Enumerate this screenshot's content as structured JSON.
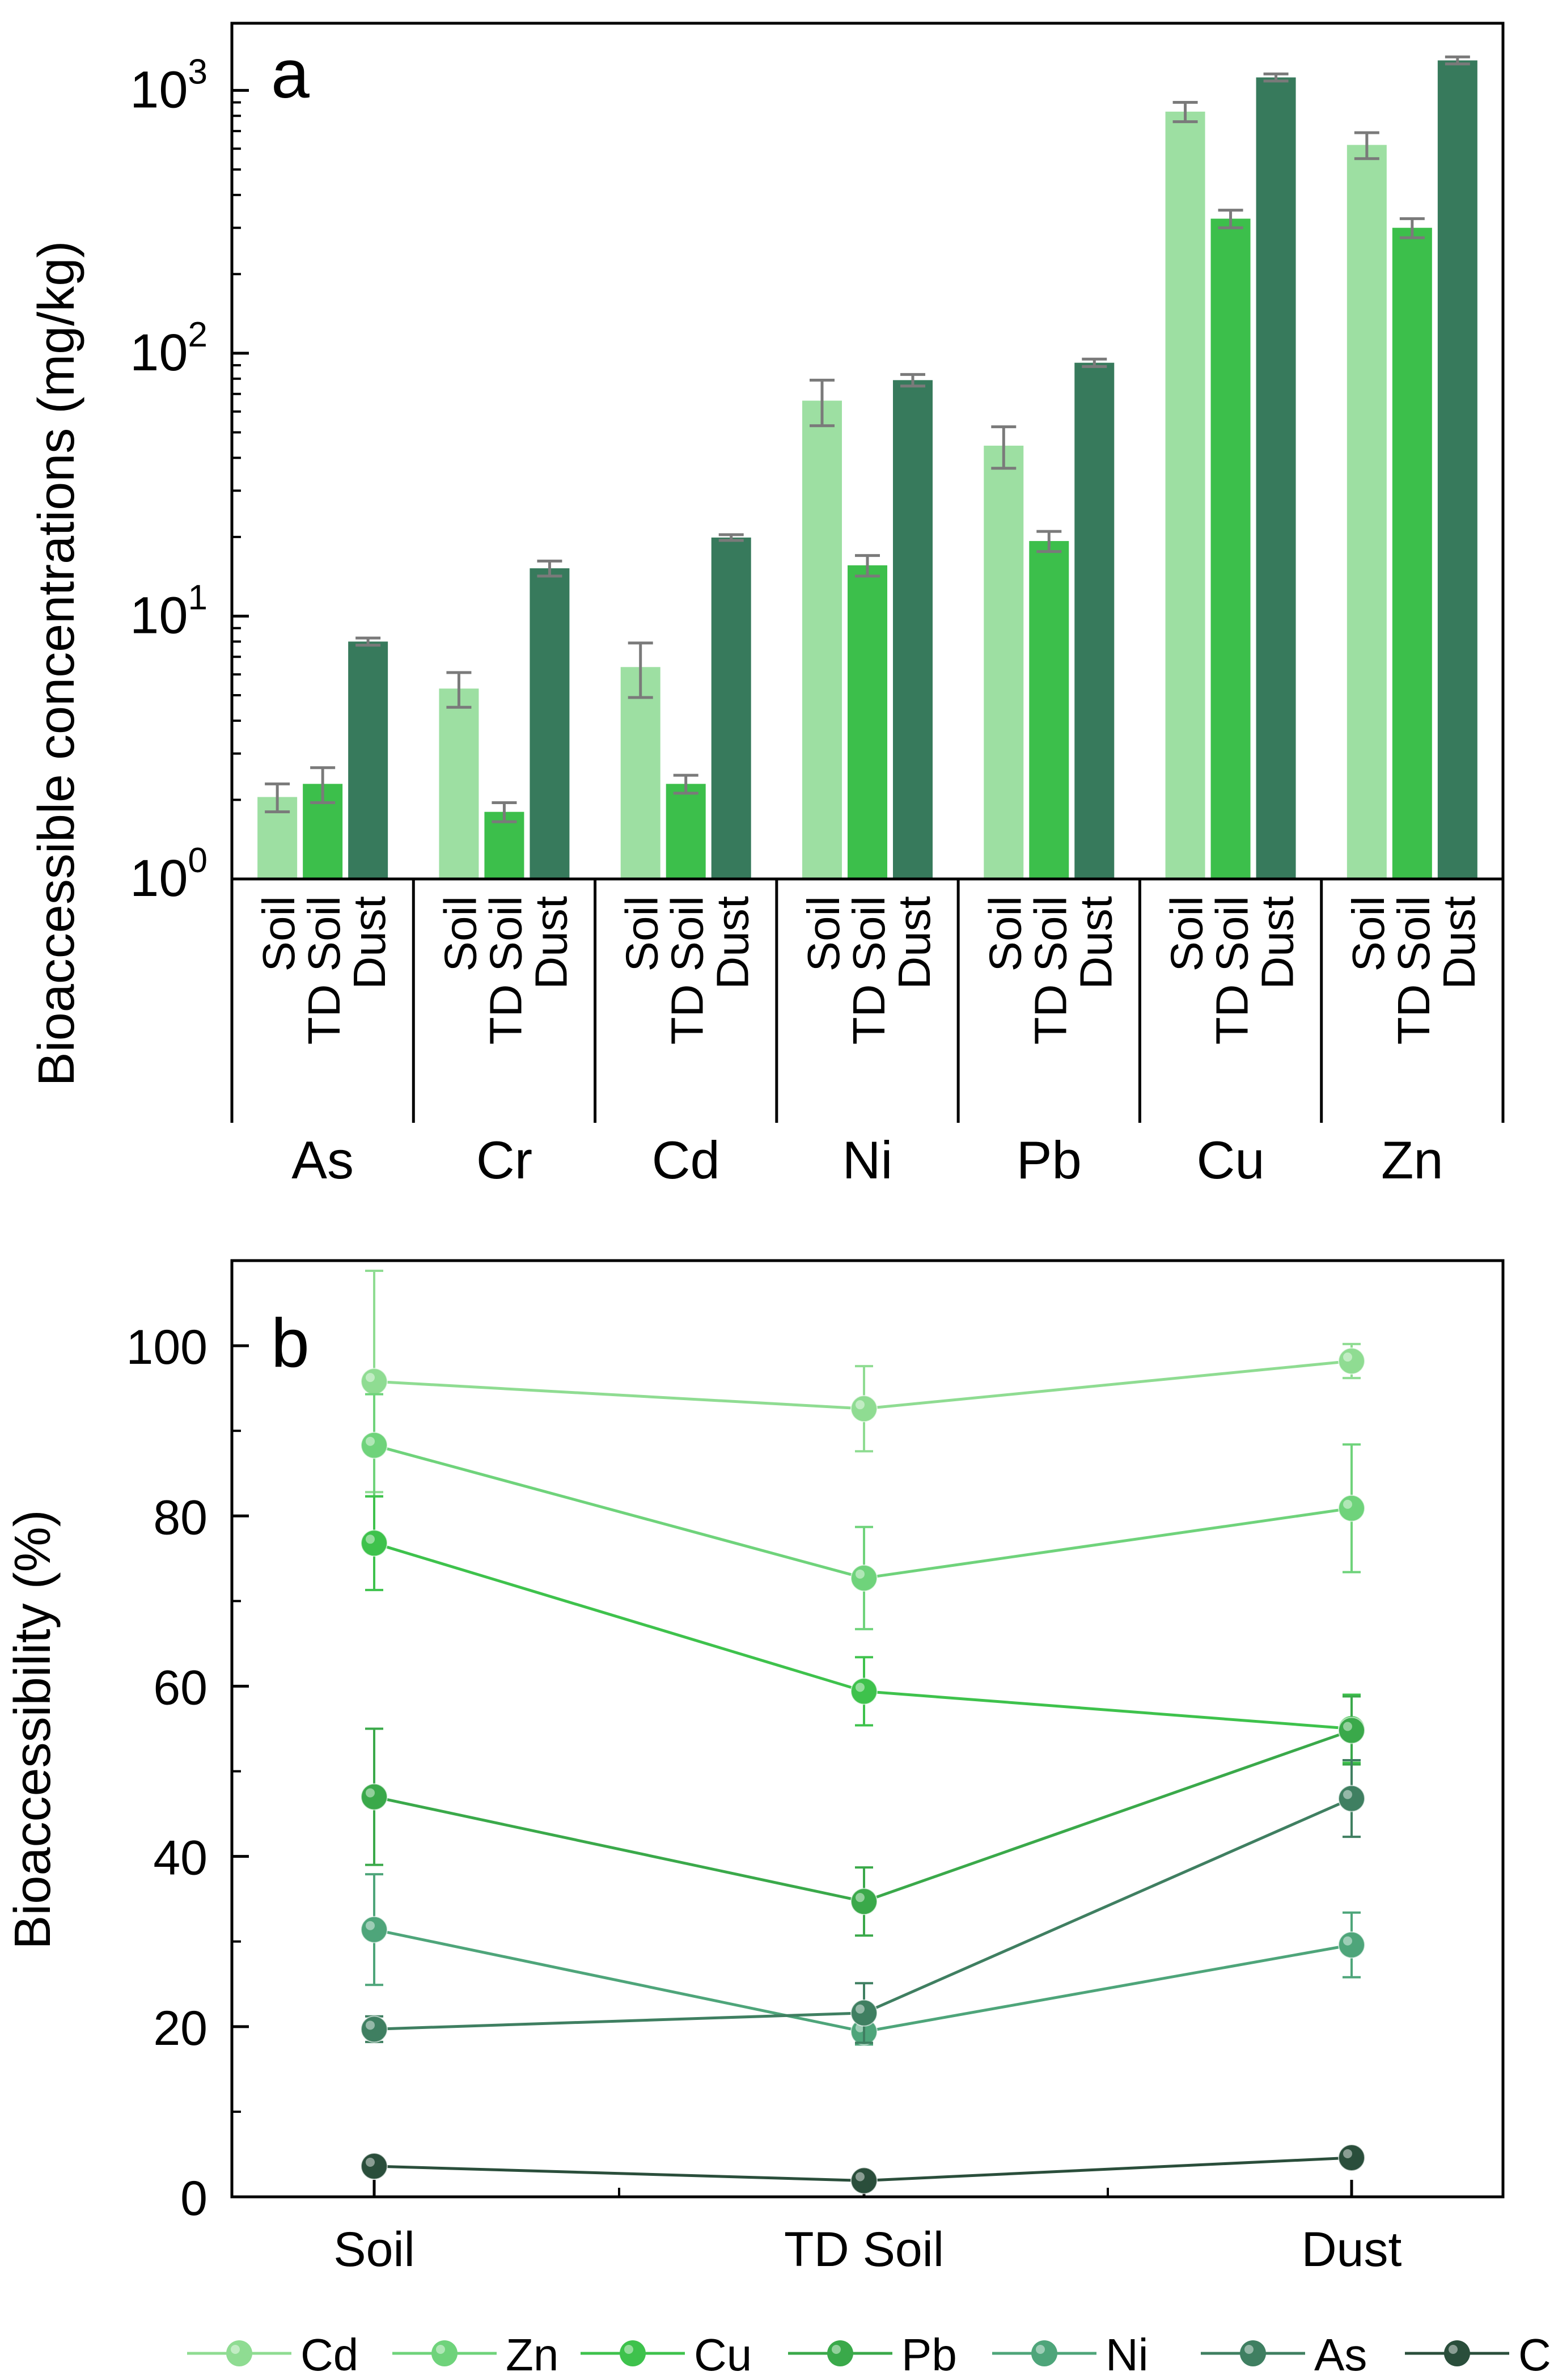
{
  "colors": {
    "soil": "#9ddfa2",
    "td_soil": "#3cbf4b",
    "dust": "#377a5c",
    "error_bar": "#7a7a7a",
    "axis": "#000000",
    "Cd": "#8fdc92",
    "Zn": "#6fd37b",
    "Cu": "#3ec24c",
    "Pb": "#3aa94a",
    "Ni": "#4ea57a",
    "As": "#3f7f61",
    "Cr": "#2a4e3b"
  },
  "chart_data": [
    {
      "type": "bar",
      "panel_label": "a",
      "ylabel": "Bioaccessible concentrations (mg/kg)",
      "yscale": "log",
      "ylim": [
        1,
        1800
      ],
      "yticks": [
        {
          "value": 1,
          "base": "10",
          "exp": "0"
        },
        {
          "value": 10,
          "base": "10",
          "exp": "1"
        },
        {
          "value": 100,
          "base": "10",
          "exp": "2"
        },
        {
          "value": 1000,
          "base": "10",
          "exp": "3"
        }
      ],
      "categories": [
        "As",
        "Cr",
        "Cd",
        "Ni",
        "Pb",
        "Cu",
        "Zn"
      ],
      "sublabels": [
        "Soil",
        "TD Soil",
        "Dust"
      ],
      "series": [
        {
          "name": "Soil",
          "values": [
            2.05,
            5.3,
            6.4,
            66,
            44.5,
            830,
            620
          ],
          "errors": [
            0.25,
            0.8,
            1.5,
            13,
            8,
            70,
            70
          ]
        },
        {
          "name": "TD Soil",
          "values": [
            2.3,
            1.8,
            2.3,
            15.6,
            19.3,
            325,
            300
          ],
          "errors": [
            0.35,
            0.15,
            0.18,
            1.4,
            1.7,
            25,
            25
          ]
        },
        {
          "name": "Dust",
          "values": [
            8.0,
            15.2,
            19.9,
            79,
            92,
            1120,
            1300
          ],
          "errors": [
            0.25,
            1.0,
            0.5,
            4,
            3,
            35,
            40
          ]
        }
      ]
    },
    {
      "type": "line",
      "panel_label": "b",
      "ylabel": "Bioaccessibility (%)",
      "ylim": [
        0,
        110
      ],
      "yticks": [
        0,
        20,
        40,
        60,
        80,
        100
      ],
      "x": [
        "Soil",
        "TD Soil",
        "Dust"
      ],
      "series": [
        {
          "name": "Cd",
          "values": [
            95.8,
            92.6,
            98.2
          ],
          "errors": [
            13,
            5,
            2
          ]
        },
        {
          "name": "Zn",
          "values": [
            88.3,
            72.7,
            80.9
          ],
          "errors": [
            6,
            6,
            7.5
          ]
        },
        {
          "name": "Cu",
          "values": [
            76.8,
            59.4,
            55.0
          ],
          "errors": [
            5.5,
            4,
            4
          ]
        },
        {
          "name": "Pb",
          "values": [
            47.0,
            34.7,
            54.8
          ],
          "errors": [
            8,
            4,
            4
          ]
        },
        {
          "name": "Ni",
          "values": [
            31.4,
            19.4,
            29.6
          ],
          "errors": [
            6.5,
            1.5,
            3.8
          ]
        },
        {
          "name": "As",
          "values": [
            19.7,
            21.6,
            46.8
          ],
          "errors": [
            1.5,
            3.5,
            4.5
          ]
        },
        {
          "name": "Cr",
          "values": [
            3.6,
            1.9,
            4.6
          ],
          "errors": [
            0.5,
            0.3,
            0.5
          ]
        }
      ],
      "legend_location": "bottom"
    }
  ]
}
